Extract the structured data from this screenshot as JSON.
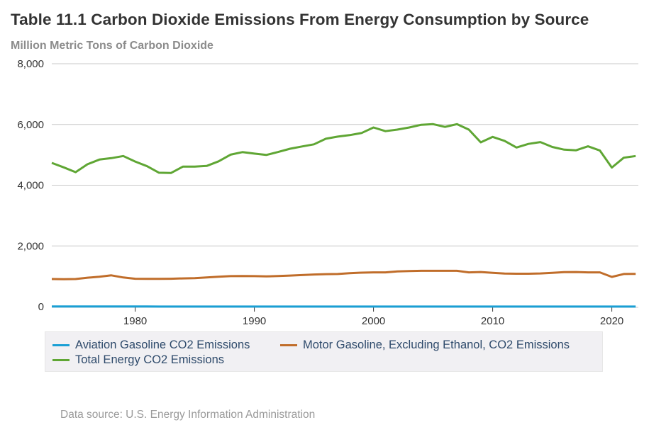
{
  "chart_data": {
    "type": "line",
    "title": "Table 11.1 Carbon Dioxide Emissions From Energy Consumption by Source",
    "subtitle": "Million Metric Tons of Carbon Dioxide",
    "xlabel": "",
    "ylabel": "Million Metric Tons of Carbon Dioxide",
    "xlim": [
      1973,
      2022
    ],
    "ylim": [
      0,
      8000
    ],
    "grid": true,
    "legend_placement": "bottom",
    "y_ticks": [
      0,
      2000,
      4000,
      6000,
      8000
    ],
    "y_tick_labels": [
      "0",
      "2,000",
      "4,000",
      "6,000",
      "8,000"
    ],
    "x_ticks": [
      1980,
      1990,
      2000,
      2010,
      2020
    ],
    "x_tick_labels": [
      "1980",
      "1990",
      "2000",
      "2010",
      "2020"
    ],
    "x": [
      1973,
      1974,
      1975,
      1976,
      1977,
      1978,
      1979,
      1980,
      1981,
      1982,
      1983,
      1984,
      1985,
      1986,
      1987,
      1988,
      1989,
      1990,
      1991,
      1992,
      1993,
      1994,
      1995,
      1996,
      1997,
      1998,
      1999,
      2000,
      2001,
      2002,
      2003,
      2004,
      2005,
      2006,
      2007,
      2008,
      2009,
      2010,
      2011,
      2012,
      2013,
      2014,
      2015,
      2016,
      2017,
      2018,
      2019,
      2020,
      2021,
      2022
    ],
    "series": [
      {
        "name": "Aviation Gasoline CO2 Emissions",
        "color": "#1a9fd4",
        "values": [
          5,
          5,
          5,
          4,
          4,
          4,
          4,
          4,
          4,
          3,
          3,
          3,
          3,
          3,
          3,
          3,
          3,
          3,
          3,
          3,
          3,
          3,
          3,
          3,
          3,
          3,
          3,
          3,
          3,
          3,
          2,
          2,
          2,
          2,
          2,
          2,
          2,
          2,
          2,
          2,
          2,
          2,
          2,
          2,
          2,
          2,
          2,
          2,
          2,
          2
        ]
      },
      {
        "name": "Motor Gasoline, Excluding Ethanol, CO2 Emissions",
        "color": "#c06d2a",
        "values": [
          910,
          905,
          910,
          955,
          985,
          1030,
          960,
          920,
          915,
          915,
          920,
          930,
          940,
          960,
          985,
          1005,
          1010,
          1005,
          995,
          1010,
          1025,
          1040,
          1060,
          1070,
          1075,
          1100,
          1120,
          1130,
          1130,
          1160,
          1170,
          1180,
          1180,
          1180,
          1180,
          1130,
          1140,
          1115,
          1090,
          1085,
          1085,
          1095,
          1115,
          1135,
          1140,
          1130,
          1130,
          980,
          1075,
          1080
        ]
      },
      {
        "name": "Total Energy CO2 Emissions",
        "color": "#5fa634",
        "values": [
          4735,
          4587,
          4430,
          4690,
          4845,
          4890,
          4960,
          4780,
          4625,
          4410,
          4400,
          4610,
          4610,
          4635,
          4785,
          5005,
          5090,
          5040,
          4995,
          5095,
          5200,
          5275,
          5345,
          5530,
          5600,
          5650,
          5720,
          5900,
          5780,
          5830,
          5900,
          5990,
          6010,
          5920,
          6010,
          5830,
          5410,
          5590,
          5460,
          5240,
          5360,
          5420,
          5260,
          5170,
          5150,
          5280,
          5140,
          4580,
          4905,
          4960
        ]
      }
    ],
    "annotations": [
      "Data source: U.S. Energy Information Administration"
    ]
  },
  "legend": {
    "items": [
      {
        "label": "Aviation Gasoline CO2 Emissions",
        "color": "#1a9fd4"
      },
      {
        "label": "Motor Gasoline, Excluding Ethanol, CO2 Emissions",
        "color": "#c06d2a"
      },
      {
        "label": "Total Energy CO2 Emissions",
        "color": "#5fa634"
      }
    ]
  },
  "footer": {
    "source": "Data source: U.S. Energy Information Administration"
  }
}
